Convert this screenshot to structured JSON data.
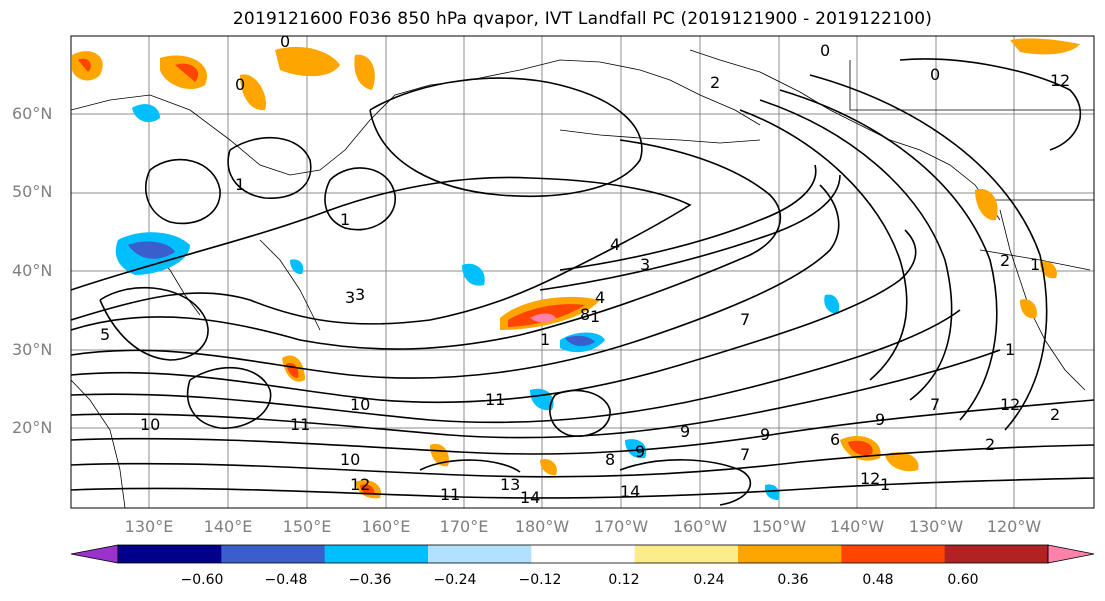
{
  "title": "2019121600 F036 850 hPa qvapor, IVT Landfall PC (2019121900 - 2019122100)",
  "lat_labels": [
    "60°N",
    "50°N",
    "40°N",
    "30°N",
    "20°N"
  ],
  "lon_labels": [
    "130°E",
    "140°E",
    "150°E",
    "160°E",
    "170°E",
    "180°W",
    "170°W",
    "160°W",
    "150°W",
    "140°W",
    "130°W",
    "120°W"
  ],
  "colorbar": {
    "ticks": [
      "−0.60",
      "−0.48",
      "−0.36",
      "−0.24",
      "−0.12",
      "0.12",
      "0.24",
      "0.36",
      "0.48",
      "0.60"
    ],
    "colors": [
      "#9a32cd",
      "#00008b",
      "#3a5fcd",
      "#00bfff",
      "#b0e2ff",
      "#ffffff",
      "#fdec8a",
      "#ffa500",
      "#ff4500",
      "#b22222",
      "#ff82ab"
    ]
  },
  "contour_labels": [
    "0",
    "2",
    "0",
    "0",
    "2",
    "1",
    "1",
    "1",
    "1",
    "2",
    "4",
    "1",
    "1",
    "3",
    "3",
    "4",
    "8",
    "7",
    "7",
    "9",
    "9",
    "9",
    "10",
    "10",
    "11",
    "11",
    "12",
    "13",
    "14",
    "14",
    "2",
    "1",
    "6",
    "9",
    "7",
    "8",
    "10",
    "11",
    "12",
    "12",
    "0",
    "1",
    "5",
    "3",
    "2"
  ]
}
